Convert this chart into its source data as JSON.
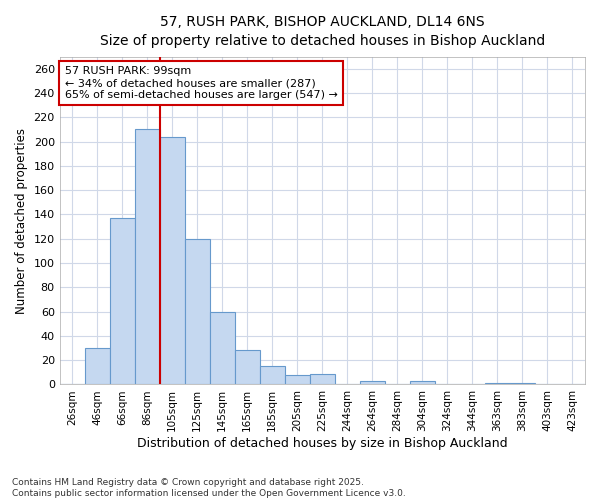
{
  "title": "57, RUSH PARK, BISHOP AUCKLAND, DL14 6NS",
  "subtitle": "Size of property relative to detached houses in Bishop Auckland",
  "xlabel": "Distribution of detached houses by size in Bishop Auckland",
  "ylabel": "Number of detached properties",
  "bin_labels": [
    "26sqm",
    "46sqm",
    "66sqm",
    "86sqm",
    "105sqm",
    "125sqm",
    "145sqm",
    "165sqm",
    "185sqm",
    "205sqm",
    "225sqm",
    "244sqm",
    "264sqm",
    "284sqm",
    "304sqm",
    "324sqm",
    "344sqm",
    "363sqm",
    "383sqm",
    "403sqm",
    "423sqm"
  ],
  "bar_heights": [
    0,
    30,
    137,
    210,
    204,
    120,
    60,
    28,
    15,
    8,
    9,
    0,
    3,
    0,
    3,
    0,
    0,
    1,
    1,
    0,
    0
  ],
  "bar_color": "#c5d8f0",
  "bar_edge_color": "#6699cc",
  "vline_color": "#cc0000",
  "vline_x_bin": 3.5,
  "annotation_text": "57 RUSH PARK: 99sqm\n← 34% of detached houses are smaller (287)\n65% of semi-detached houses are larger (547) →",
  "annotation_box_color": "#ffffff",
  "annotation_box_edge": "#cc0000",
  "ylim": [
    0,
    270
  ],
  "yticks": [
    0,
    20,
    40,
    60,
    80,
    100,
    120,
    140,
    160,
    180,
    200,
    220,
    240,
    260
  ],
  "footnote": "Contains HM Land Registry data © Crown copyright and database right 2025.\nContains public sector information licensed under the Open Government Licence v3.0.",
  "bg_color": "#ffffff",
  "plot_bg_color": "#ffffff",
  "grid_color": "#d0d8e8"
}
